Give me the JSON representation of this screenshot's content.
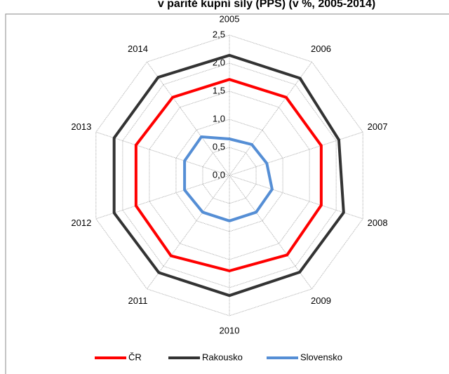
{
  "chart_data": {
    "type": "radar",
    "title": "v paritě kupní síly (PPS) (v %, 2005-2014)",
    "categories": [
      "2005",
      "2006",
      "2007",
      "2008",
      "2009",
      "2010",
      "2011",
      "2012",
      "2013",
      "2014"
    ],
    "series": [
      {
        "name": "ČR",
        "color": "#ff0000",
        "values": [
          1.71,
          1.72,
          1.72,
          1.72,
          1.75,
          1.7,
          1.77,
          1.75,
          1.75,
          1.72
        ]
      },
      {
        "name": "Rakousko",
        "color": "#333333",
        "values": [
          2.14,
          2.14,
          2.05,
          2.14,
          2.13,
          2.14,
          2.14,
          2.16,
          2.16,
          2.16
        ]
      },
      {
        "name": "Slovensko",
        "color": "#558ed5",
        "values": [
          0.65,
          0.68,
          0.7,
          0.8,
          0.81,
          0.81,
          0.81,
          0.84,
          0.84,
          0.85
        ]
      }
    ],
    "ylim": [
      0,
      2.5
    ],
    "yticks": [
      {
        "value": 0,
        "label": "0,0"
      },
      {
        "value": 0.5,
        "label": "0,5"
      },
      {
        "value": 1,
        "label": "1,0"
      },
      {
        "value": 1.5,
        "label": "1,5"
      },
      {
        "value": 2,
        "label": "2,0"
      },
      {
        "value": 2.5,
        "label": "2,5"
      }
    ],
    "grid": true,
    "legend": "bottom"
  }
}
